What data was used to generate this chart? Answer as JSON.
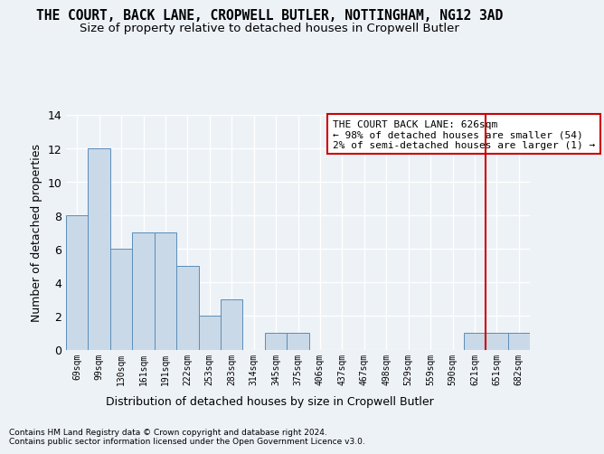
{
  "title": "THE COURT, BACK LANE, CROPWELL BUTLER, NOTTINGHAM, NG12 3AD",
  "subtitle": "Size of property relative to detached houses in Cropwell Butler",
  "xlabel": "Distribution of detached houses by size in Cropwell Butler",
  "ylabel": "Number of detached properties",
  "footer1": "Contains HM Land Registry data © Crown copyright and database right 2024.",
  "footer2": "Contains public sector information licensed under the Open Government Licence v3.0.",
  "categories": [
    "69sqm",
    "99sqm",
    "130sqm",
    "161sqm",
    "191sqm",
    "222sqm",
    "253sqm",
    "283sqm",
    "314sqm",
    "345sqm",
    "375sqm",
    "406sqm",
    "437sqm",
    "467sqm",
    "498sqm",
    "529sqm",
    "559sqm",
    "590sqm",
    "621sqm",
    "651sqm",
    "682sqm"
  ],
  "values": [
    8,
    12,
    6,
    7,
    7,
    5,
    2,
    3,
    0,
    1,
    1,
    0,
    0,
    0,
    0,
    0,
    0,
    0,
    1,
    1,
    1
  ],
  "bar_color": "#c9d9e8",
  "bar_edge_color": "#5b8db8",
  "ylim": [
    0,
    14
  ],
  "yticks": [
    0,
    2,
    4,
    6,
    8,
    10,
    12,
    14
  ],
  "vline_x": 18.5,
  "vline_color": "#cc0000",
  "annotation_text": "THE COURT BACK LANE: 626sqm\n← 98% of detached houses are smaller (54)\n2% of semi-detached houses are larger (1) →",
  "annotation_box_color": "#cc0000",
  "bg_color": "#edf2f7",
  "grid_color": "#ffffff",
  "title_fontsize": 10.5,
  "subtitle_fontsize": 9.5,
  "ann_fontsize": 8.0
}
